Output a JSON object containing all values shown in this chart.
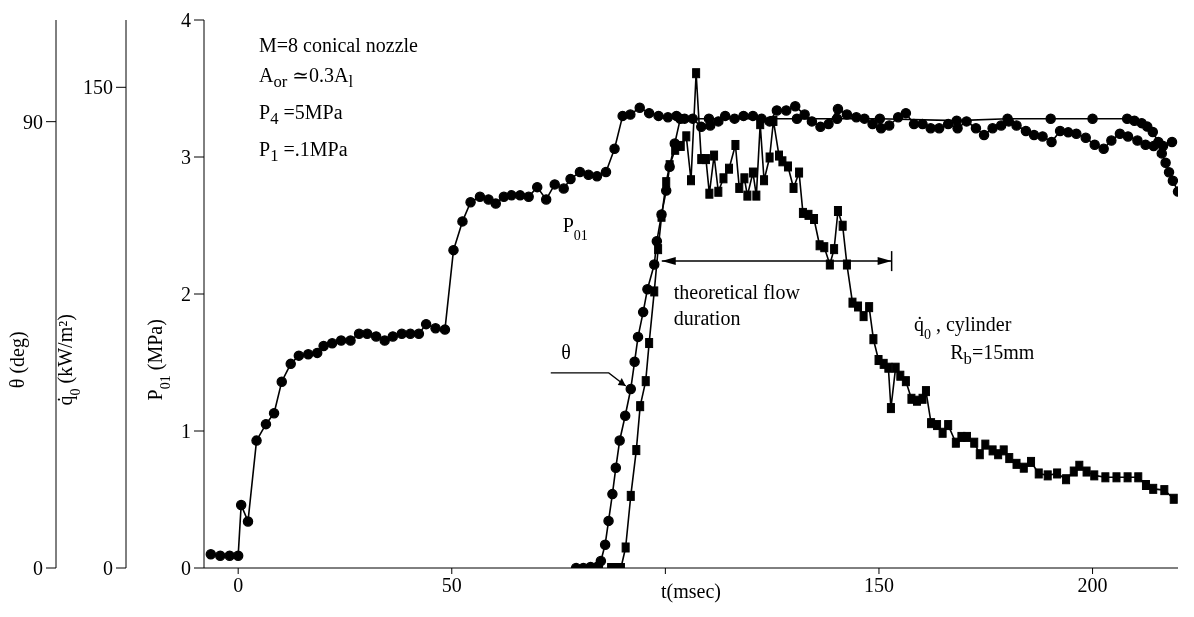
{
  "chart_data": {
    "type": "line",
    "xlabel": "t(msec)",
    "ylabel": "P$_{01}$ (MPa)",
    "y2label": "q̇$_{0}$ (kW/m²)",
    "y3label": "θ (deg)",
    "xlim": [
      -8,
      220
    ],
    "xticks": [
      0,
      50,
      {
        "value": 100,
        "label": null
      },
      150,
      200
    ],
    "ylim": [
      0,
      4
    ],
    "yticks": [
      0,
      1,
      2,
      3,
      4
    ],
    "y2lim": [
      0,
      171
    ],
    "y2ticks": [
      0,
      150
    ],
    "y3lim": [
      0,
      110.5
    ],
    "y3ticks": [
      0,
      90
    ],
    "annotations": [
      "M=8 conical nozzle",
      "A$_{or}$ ≃0.3A$_{l}$",
      "P$_{4}$ =5MPa",
      "P$_{1}$ =.1MPa",
      "R$_{b}$=15mm",
      "theoretical flow duration"
    ],
    "series": [
      {
        "name": "P$_{01}$",
        "color": "#000000",
        "marker": "circle",
        "x": [
          -6.4,
          -4.2,
          -2.0,
          0,
          0.7,
          2.3,
          4.3,
          6.5,
          8.4,
          10.2,
          12.3,
          14.2,
          16.4,
          18.5,
          20.0,
          22.0,
          24.1,
          26.3,
          28.3,
          30.2,
          32.3,
          34.3,
          36.2,
          38.3,
          40.3,
          42.3,
          44.0,
          46.2,
          48.4,
          50.4,
          52.5,
          54.4,
          56.6,
          58.6,
          60.3,
          62.2,
          64.0,
          66.0,
          68.0,
          70.0,
          72.1,
          74.1,
          76.2,
          77.8,
          80.0,
          82.0,
          84.0,
          86.1,
          88.1,
          90.0,
          91.8,
          94.0,
          96.2,
          98.4,
          100.6,
          102.6,
          104.5,
          106.4,
          108.4,
          110.5,
          112.4,
          114.0,
          116.2,
          118.3,
          120.5,
          122.5,
          124.4,
          126.1,
          128.3,
          130.4,
          132.6,
          134.3,
          136.3,
          138.2,
          140.4,
          142.5,
          144.7,
          146.6,
          148.5,
          150.5,
          152.4,
          154.5,
          156.3,
          158.2,
          160.2,
          162.1,
          164.1,
          166.2,
          168.4,
          170.5,
          172.7,
          174.6,
          176.6,
          178.6,
          180.4,
          182.2,
          184.4,
          186.3,
          188.3,
          190.4,
          192.4,
          194.3,
          196.2,
          198.4,
          200.5,
          202.6,
          204.4,
          206.4,
          208.3,
          210.5,
          212.4,
          214.3,
          216.5,
          218.6
        ],
        "values": [
          0.1,
          0.09,
          0.09,
          0.09,
          0.46,
          0.34,
          0.93,
          1.05,
          1.13,
          1.36,
          1.49,
          1.55,
          1.56,
          1.57,
          1.62,
          1.64,
          1.66,
          1.66,
          1.71,
          1.71,
          1.69,
          1.66,
          1.69,
          1.71,
          1.71,
          1.71,
          1.78,
          1.75,
          1.74,
          2.32,
          2.53,
          2.67,
          2.71,
          2.69,
          2.66,
          2.71,
          2.72,
          2.72,
          2.71,
          2.78,
          2.69,
          2.8,
          2.77,
          2.84,
          2.89,
          2.87,
          2.86,
          2.89,
          3.06,
          3.3,
          3.31,
          3.36,
          3.32,
          3.3,
          3.29,
          3.3,
          3.28,
          3.28,
          3.22,
          3.23,
          3.26,
          3.3,
          3.28,
          3.3,
          3.3,
          3.28,
          3.26,
          3.34,
          3.34,
          3.37,
          3.31,
          3.26,
          3.22,
          3.24,
          3.35,
          3.31,
          3.29,
          3.28,
          3.24,
          3.21,
          3.23,
          3.29,
          3.32,
          3.24,
          3.24,
          3.21,
          3.21,
          3.24,
          3.21,
          3.26,
          3.21,
          3.16,
          3.21,
          3.23,
          3.26,
          3.23,
          3.19,
          3.16,
          3.15,
          3.11,
          3.19,
          3.18,
          3.17,
          3.14,
          3.09,
          3.06,
          3.12,
          3.17,
          3.15,
          3.12,
          3.09,
          3.08,
          3.08,
          3.11
        ]
      },
      {
        "name": "θ",
        "color": "#000000",
        "marker": "circle",
        "axis": "y3",
        "x": [
          79.1,
          80.8,
          82.5,
          84.2,
          84.9,
          85.9,
          86.7,
          87.6,
          88.4,
          89.3,
          90.6,
          91.9,
          92.8,
          93.6,
          94.8,
          95.8,
          97.4,
          98.0,
          99.1,
          100.2,
          101.0,
          102.2,
          103.5,
          110.2,
          130.8,
          140.2,
          150.2,
          168.2,
          180.1,
          190.2,
          200.0,
          208.1,
          209.8,
          211.5,
          212.8,
          214.1,
          215.4,
          216.2,
          217.1,
          217.9,
          218.8,
          220
        ],
        "values": [
          0,
          0,
          0.2,
          0.3,
          1.4,
          4.7,
          9.5,
          14.9,
          20.2,
          25.7,
          30.7,
          36.1,
          41.6,
          46.6,
          51.6,
          56.2,
          61.2,
          65.9,
          71.3,
          76.1,
          80.9,
          85.6,
          90.6,
          90.6,
          90.6,
          90.6,
          90.6,
          90.2,
          90.6,
          90.6,
          90.6,
          90.6,
          90.2,
          89.7,
          89.0,
          87.9,
          85.9,
          83.6,
          81.7,
          79.8,
          78.1,
          75.9
        ]
      },
      {
        "name": "q̇$_{0}$ , cylinder",
        "color": "#000000",
        "marker": "square",
        "axis": "y2",
        "x": [
          87.3,
          88.5,
          89.6,
          90.7,
          91.9,
          93.2,
          94.1,
          95.4,
          96.2,
          97.4,
          98.3,
          99.1,
          100.2,
          101.0,
          102.3,
          103.6,
          104.9,
          106.0,
          107.2,
          108.4,
          109.5,
          110.3,
          111.4,
          112.4,
          113.6,
          114.9,
          116.4,
          117.3,
          118.5,
          119.2,
          120.5,
          121.3,
          122.2,
          123.1,
          124.4,
          125.3,
          126.6,
          127.4,
          128.7,
          130.0,
          131.3,
          132.2,
          133.5,
          134.8,
          136.1,
          137.2,
          138.5,
          139.5,
          140.4,
          141.5,
          142.5,
          143.8,
          145.1,
          146.4,
          147.7,
          148.7,
          149.9,
          151.1,
          152.2,
          152.8,
          153.9,
          155.0,
          156.3,
          157.6,
          158.9,
          160.2,
          161.0,
          162.2,
          163.6,
          164.9,
          166.2,
          168.0,
          169.3,
          170.6,
          172.3,
          173.6,
          174.9,
          176.6,
          177.9,
          179.2,
          180.5,
          182.2,
          183.9,
          185.6,
          187.4,
          189.5,
          191.7,
          193.8,
          195.6,
          196.9,
          198.6,
          200.4,
          203.0,
          205.6,
          208.2,
          210.7,
          212.5,
          214.2,
          216.8,
          219.0
        ],
        "values": [
          0,
          0,
          0,
          6.4,
          22.5,
          36.8,
          50.5,
          58.3,
          70.2,
          86.3,
          99.5,
          109.6,
          120.4,
          125.7,
          130.5,
          131.7,
          134.7,
          121.0,
          154.4,
          127.6,
          127.6,
          116.8,
          128.7,
          117.4,
          121.6,
          124.6,
          132.0,
          118.6,
          121.6,
          116.2,
          123.4,
          116.2,
          138.5,
          121.0,
          128.1,
          139.5,
          128.7,
          126.9,
          125.3,
          118.6,
          123.4,
          110.8,
          110.2,
          108.9,
          100.7,
          100.1,
          94.7,
          99.5,
          111.4,
          106.8,
          94.7,
          82.8,
          81.6,
          78.6,
          81.4,
          71.4,
          64.9,
          63.7,
          62.5,
          49.9,
          62.5,
          60.0,
          58.3,
          52.8,
          52.2,
          52.8,
          55.2,
          45.2,
          44.6,
          42.2,
          44.6,
          39.1,
          40.9,
          40.9,
          39.1,
          35.5,
          38.5,
          36.7,
          35.5,
          36.7,
          34.3,
          32.5,
          31.3,
          33.1,
          29.5,
          28.9,
          29.5,
          27.7,
          30.1,
          31.9,
          30.1,
          28.9,
          28.3,
          28.3,
          28.3,
          28.3,
          25.9,
          24.7,
          24.3,
          21.6
        ]
      }
    ]
  }
}
